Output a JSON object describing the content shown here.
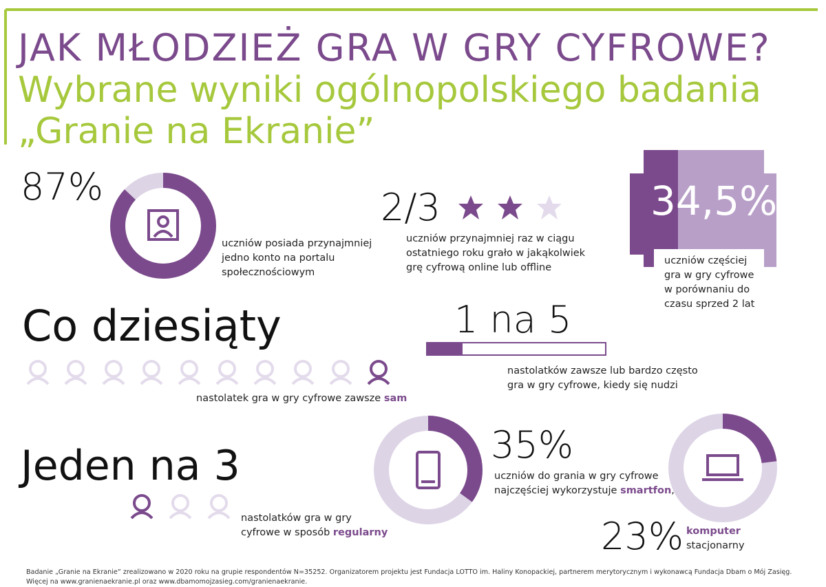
{
  "header": {
    "title": "JAK MŁODZIEŻ GRA W GRY CYFROWE?",
    "subtitle_lines": [
      "Wybrane wyniki ogólnopolskiego badania",
      "„Granie na Ekranie”"
    ]
  },
  "social": {
    "value": 87,
    "label": "87%",
    "text": [
      "uczniów posiada przynajmniej",
      "jedno konto na portalu",
      "społecznościowym"
    ]
  },
  "online": {
    "label": "2/3",
    "text": [
      "uczniów przynajmniej raz w ciągu",
      "ostatniego roku grało w jakąkolwiek",
      "grę cyfrową online lub offline"
    ]
  },
  "more": {
    "label": "34,5%",
    "text": [
      "uczniów częściej",
      "gra w gry cyfrowe",
      "w porównaniu do",
      "czasu sprzed 2 lat"
    ]
  },
  "alone": {
    "label": "Co dziesiąty",
    "text": "nastolatek gra w gry cyfrowe zawsze ",
    "emphasis": "sam"
  },
  "bored": {
    "label": "1 na 5",
    "text": [
      "nastolatków zawsze lub bardzo często",
      "gra w gry cyfrowe, kiedy się nudzi"
    ]
  },
  "regular": {
    "label": "Jeden na 3",
    "text": [
      "nastolatków gra w gry",
      "cyfrowe w sposób "
    ],
    "emphasis": "regularny"
  },
  "smartphone": {
    "value": 35,
    "label": "35%",
    "text": [
      "uczniów do grania w gry cyfrowe",
      "najczęściej wykorzystuje "
    ],
    "emphasis": "smartfon",
    "after": ","
  },
  "computer": {
    "value": 23,
    "label": "23%",
    "emphasis": "komputer",
    "text": "stacjonarny"
  },
  "footer": [
    "Badanie „Granie na Ekranie” zrealizowano w 2020 roku na grupie respondentów N=35252. Organizatorem projektu jest Fundacja LOTTO im. Haliny Konopackiej, partnerem merytorycznym i wykonawcą Fundacja Dbam o Mój Zasięg.",
    "Więcej na www.granienaekranie.pl oraz www.dbamomojzasieg.com/granienaekranie."
  ]
}
